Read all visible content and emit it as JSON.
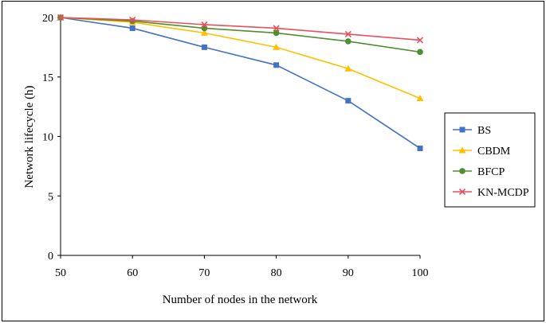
{
  "chart_data": {
    "type": "line",
    "title": "",
    "xlabel": "Number of nodes in the network",
    "ylabel": "Network lifecycle (h)",
    "x": [
      50,
      60,
      70,
      80,
      90,
      100
    ],
    "xlim": [
      50,
      100
    ],
    "ylim": [
      0,
      20
    ],
    "xticks": [
      "50",
      "60",
      "70",
      "80",
      "90",
      "100"
    ],
    "yticks": [
      "0",
      "5",
      "10",
      "15",
      "20"
    ],
    "grid": false,
    "legend_position": "right",
    "series": [
      {
        "name": "BS",
        "color": "#4472C4",
        "marker": "square",
        "values": [
          20,
          19.1,
          17.5,
          16.0,
          13.0,
          9.0
        ]
      },
      {
        "name": "CBDM",
        "color": "#FFC000",
        "marker": "triangle",
        "values": [
          20,
          19.6,
          18.7,
          17.5,
          15.7,
          13.2
        ]
      },
      {
        "name": "BFCP",
        "color": "#4E8F2F",
        "marker": "circle",
        "values": [
          20,
          19.7,
          19.1,
          18.7,
          18.0,
          17.1
        ]
      },
      {
        "name": "KN-MCDP",
        "color": "#E8505B",
        "marker": "x",
        "values": [
          20,
          19.8,
          19.4,
          19.1,
          18.6,
          18.1
        ]
      }
    ]
  }
}
